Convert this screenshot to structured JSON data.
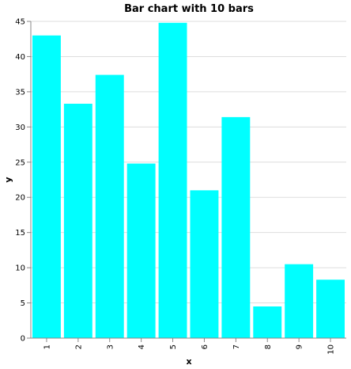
{
  "chart_data": {
    "type": "bar",
    "title": "Bar chart with 10 bars",
    "xlabel": "x",
    "ylabel": "y",
    "categories": [
      "1",
      "2",
      "3",
      "4",
      "5",
      "6",
      "7",
      "8",
      "9",
      "10"
    ],
    "values": [
      43,
      33.3,
      37.4,
      24.8,
      44.8,
      21,
      31.4,
      4.5,
      10.5,
      8.3
    ],
    "ylim": [
      0,
      45
    ],
    "yticks": [
      0,
      5,
      10,
      15,
      20,
      25,
      30,
      35,
      40,
      45
    ],
    "grid": true,
    "colors": {
      "bar": "#00ffff"
    }
  }
}
